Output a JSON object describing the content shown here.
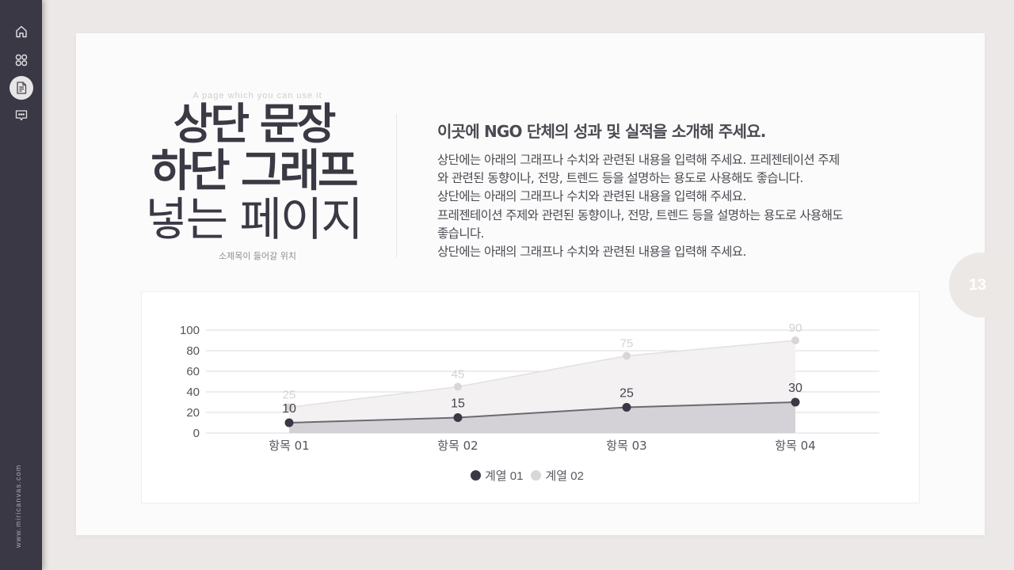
{
  "sidebar": {
    "items": [
      {
        "name": "home",
        "icon": "home-icon",
        "active": false
      },
      {
        "name": "templates",
        "icon": "grid-icon",
        "active": false
      },
      {
        "name": "document",
        "icon": "document-icon",
        "active": true
      },
      {
        "name": "comment",
        "icon": "comment-icon",
        "active": false
      }
    ],
    "brand": "www.miricanvas.com"
  },
  "slide": {
    "page_number": "13",
    "eyebrow": "A page which you can use it",
    "title_lines": [
      "상단 문장",
      "하단 그래프",
      "넣는 페이지"
    ],
    "subtitle": "소제목이 들어갈 위치",
    "heading": "이곳에 NGO 단체의 성과 및 실적을 소개해 주세요.",
    "body_lines": [
      "상단에는 아래의 그래프나 수치와 관련된 내용을 입력해 주세요. 프레젠테이션 주제",
      "와 관련된 동향이나, 전망, 트렌드 등을 설명하는 용도로 사용해도 좋습니다.",
      "상단에는 아래의 그래프나 수치와 관련된 내용을 입력해 주세요.",
      "프레젠테이션 주제와 관련된 동향이나, 전망, 트렌드 등을 설명하는 용도로 사용해도",
      "좋습니다.",
      "상단에는 아래의 그래프나 수치와 관련된 내용을 입력해 주세요."
    ]
  },
  "colors": {
    "series1": "#3a3845",
    "series2": "#d9d7d6",
    "sidebar": "#3a3845",
    "text": "#4a4a52"
  },
  "chart_data": {
    "type": "area",
    "title": "",
    "xlabel": "",
    "ylabel": "",
    "categories": [
      "항목 01",
      "항목 02",
      "항목 03",
      "항목 04"
    ],
    "series": [
      {
        "name": "계열 01",
        "values": [
          10,
          15,
          25,
          30
        ],
        "color": "#3a3845"
      },
      {
        "name": "계열 02",
        "values": [
          25,
          45,
          75,
          90
        ],
        "color": "#d9d7d6"
      }
    ],
    "yticks": [
      "0",
      "20",
      "40",
      "60",
      "80",
      "100"
    ],
    "ylim": [
      0,
      100
    ],
    "grid": true,
    "data_labels": true,
    "legend_position": "bottom"
  }
}
